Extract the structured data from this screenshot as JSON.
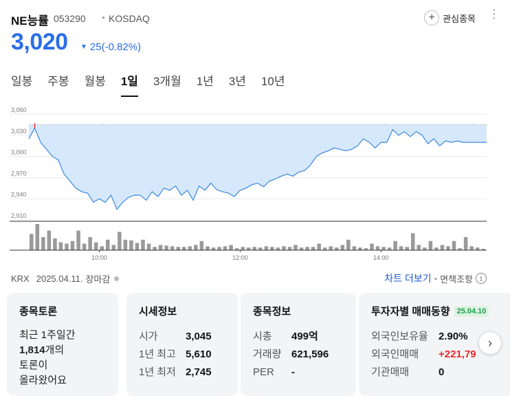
{
  "header": {
    "name": "NE능률",
    "code": "053290",
    "separator": "•",
    "market": "KOSDAQ",
    "fav_plus": "+",
    "fav_label": "관심종목",
    "more_icon": "⋮"
  },
  "quote": {
    "price": "3,020",
    "direction_icon": "▼",
    "change": "25(-0.82%)",
    "color": "#2b6ee8"
  },
  "tabs": [
    {
      "label": "일봉",
      "active": false
    },
    {
      "label": "주봉",
      "active": false
    },
    {
      "label": "월봉",
      "active": false
    },
    {
      "label": "1일",
      "active": true
    },
    {
      "label": "3개월",
      "active": false
    },
    {
      "label": "1년",
      "active": false
    },
    {
      "label": "3년",
      "active": false
    },
    {
      "label": "10년",
      "active": false
    }
  ],
  "chart_data": {
    "type": "area",
    "y_ticks": [
      "3,060",
      "3,030",
      "3,000",
      "2,970",
      "2,940",
      "2,910"
    ],
    "x_ticks": [
      "10:00",
      "12:00",
      "14:00"
    ],
    "ylim": [
      2910,
      3060
    ],
    "previous_close": 3045,
    "series": [
      {
        "time": [
          "09:00",
          "09:05",
          "09:10",
          "09:15",
          "09:20",
          "09:25",
          "09:30",
          "09:35",
          "09:40",
          "09:45",
          "09:50",
          "09:55",
          "10:00",
          "10:05",
          "10:10",
          "10:15",
          "10:20",
          "10:25",
          "10:30",
          "10:35",
          "10:40",
          "10:45",
          "10:50",
          "10:55",
          "11:00",
          "11:05",
          "11:10",
          "11:15",
          "11:20",
          "11:25",
          "11:30",
          "11:35",
          "11:40",
          "11:45",
          "11:50",
          "11:55",
          "12:00",
          "12:05",
          "12:10",
          "12:15",
          "12:20",
          "12:25",
          "12:30",
          "12:35",
          "12:40",
          "12:45",
          "12:50",
          "12:55",
          "13:00",
          "13:05",
          "13:10",
          "13:15",
          "13:20",
          "13:25",
          "13:30",
          "13:35",
          "13:40",
          "13:45",
          "13:50",
          "13:55",
          "14:00",
          "14:05",
          "14:10",
          "14:15",
          "14:20",
          "14:25",
          "14:30",
          "14:35",
          "14:40",
          "14:45",
          "14:50",
          "14:55",
          "15:00",
          "15:05",
          "15:10",
          "15:15",
          "15:20",
          "15:30"
        ],
        "values": [
          3025,
          3040,
          3020,
          3010,
          3000,
          2995,
          2975,
          2965,
          2955,
          2950,
          2948,
          2935,
          2940,
          2935,
          2945,
          2925,
          2935,
          2942,
          2945,
          2945,
          2938,
          2950,
          2943,
          2955,
          2952,
          2958,
          2945,
          2952,
          2938,
          2958,
          2952,
          2962,
          2953,
          2950,
          2948,
          2943,
          2952,
          2955,
          2960,
          2962,
          2957,
          2965,
          2968,
          2972,
          2975,
          2972,
          2978,
          2980,
          2988,
          3000,
          3005,
          3008,
          3012,
          3010,
          3008,
          3010,
          3015,
          3025,
          3020,
          3012,
          3020,
          3020,
          3038,
          3030,
          3035,
          3028,
          3035,
          3030,
          3018,
          3025,
          3015,
          3022,
          3020,
          3022,
          3020,
          3020,
          3020,
          3020
        ]
      }
    ],
    "volume": [
      25,
      40,
      20,
      30,
      18,
      12,
      10,
      14,
      30,
      10,
      20,
      12,
      6,
      16,
      8,
      28,
      16,
      15,
      11,
      16,
      10,
      5,
      8,
      7,
      6,
      5,
      5,
      6,
      8,
      14,
      6,
      4,
      5,
      6,
      8,
      3,
      5,
      4,
      5,
      4,
      6,
      5,
      4,
      6,
      5,
      8,
      4,
      5,
      5,
      10,
      4,
      6,
      4,
      8,
      16,
      6,
      4,
      3,
      10,
      6,
      5,
      4,
      14,
      6,
      5,
      26,
      8,
      4,
      14,
      4,
      8,
      6,
      14,
      3,
      20,
      6,
      4,
      2
    ],
    "colors": {
      "line": "#3a86e0",
      "fill": "#d6e8fb",
      "volume": "#9a9a9a",
      "high_mark": "#e52a2a",
      "ref_line": "#8a8a8a"
    }
  },
  "footer": {
    "exchange": "KRX",
    "date": "2025.04.11.",
    "status": "장마감",
    "chart_more": "차트 더보기",
    "dot": "•",
    "disclaimer": "면책조항",
    "info_icon": "i"
  },
  "cards": {
    "discussion": {
      "title": "종목토론",
      "line1": "최근 1주일간",
      "count": "1,814",
      "count_suffix": "개의",
      "line3": "토론이",
      "line4": "올라왔어요"
    },
    "market_info": {
      "title": "시세정보",
      "rows": [
        {
          "k": "시가",
          "v": "3,045"
        },
        {
          "k": "1년 최고",
          "v": "5,610"
        },
        {
          "k": "1년 최저",
          "v": "2,745"
        }
      ]
    },
    "stock_info": {
      "title": "종목정보",
      "rows": [
        {
          "k": "시총",
          "v": "499억"
        },
        {
          "k": "거래량",
          "v": "621,596"
        },
        {
          "k": "PER",
          "v": "-"
        }
      ]
    },
    "investor": {
      "title": "투자자별 매매동향",
      "badge": "25.04.10",
      "rows": [
        {
          "k": "외국인보유율",
          "v": "2.90%"
        },
        {
          "k": "외국인매매",
          "v": "+221,79"
        },
        {
          "k": "기관매매",
          "v": "0"
        }
      ]
    },
    "next_icon": "›"
  }
}
